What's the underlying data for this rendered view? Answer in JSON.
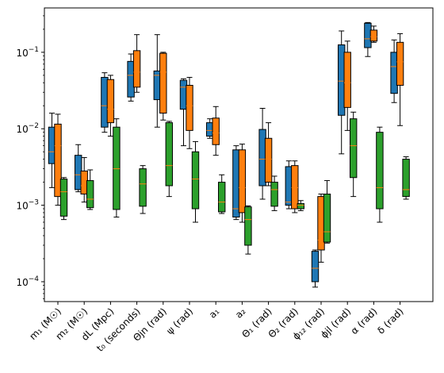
{
  "chart_data": {
    "type": "box",
    "title": "",
    "xlabel": "",
    "ylabel": "",
    "yscale": "log",
    "ylim": [
      5.5e-05,
      0.38
    ],
    "yticks": [
      {
        "value": 0.0001,
        "base": "10",
        "exp": "−4"
      },
      {
        "value": 0.001,
        "base": "10",
        "exp": "−3"
      },
      {
        "value": 0.01,
        "base": "10",
        "exp": "−2"
      },
      {
        "value": 0.1,
        "base": "10",
        "exp": "−1"
      }
    ],
    "grid": false,
    "legend": "none",
    "categories": [
      "m₁ (M☉)",
      "m₂ (M☉)",
      "dL (Mpc)",
      "t₀ (seconds)",
      "Θjn (rad)",
      "ψ (rad)",
      "a₁",
      "a₂",
      "Θ₁ (rad)",
      "Θ₂ (rad)",
      "ϕ₁₂ (rad)",
      "ϕjl (rad)",
      "α (rad)",
      "δ (rad)"
    ],
    "series_colors": [
      "#1f77b4",
      "#ff7f0e",
      "#2ca02c"
    ],
    "median_color": "#ff7f0e",
    "series": [
      {
        "boxes": [
          {
            "whislo": 0.0017,
            "q1": 0.0035,
            "med": 0.005,
            "q3": 0.0105,
            "whishi": 0.016
          },
          {
            "whislo": 0.0015,
            "q1": 0.0016,
            "med": 0.0025,
            "q3": 0.0045,
            "whishi": 0.0062
          },
          {
            "whislo": 0.009,
            "q1": 0.0105,
            "med": 0.02,
            "q3": 0.047,
            "whishi": 0.054
          },
          {
            "whislo": 0.023,
            "q1": 0.026,
            "med": 0.05,
            "q3": 0.076,
            "whishi": 0.095
          },
          {
            "whislo": 0.0105,
            "q1": 0.024,
            "med": 0.05,
            "q3": 0.057,
            "whishi": 0.17
          },
          {
            "whislo": 0.006,
            "q1": 0.018,
            "med": 0.035,
            "q3": 0.043,
            "whishi": 0.045
          },
          {
            "whislo": 0.0075,
            "q1": 0.008,
            "med": 0.0095,
            "q3": 0.012,
            "whishi": 0.0135
          },
          {
            "whislo": 0.00065,
            "q1": 0.0007,
            "med": 0.0009,
            "q3": 0.0053,
            "whishi": 0.006
          },
          {
            "whislo": 0.0012,
            "q1": 0.0018,
            "med": 0.004,
            "q3": 0.0098,
            "whishi": 0.0185
          },
          {
            "whislo": 0.0009,
            "q1": 0.001,
            "med": 0.0011,
            "q3": 0.0032,
            "whishi": 0.0038
          },
          {
            "whislo": 8.5e-05,
            "q1": 0.0001,
            "med": 0.00015,
            "q3": 0.00025,
            "whishi": 0.00026
          },
          {
            "whislo": 0.0047,
            "q1": 0.015,
            "med": 0.042,
            "q3": 0.125,
            "whishi": 0.19
          },
          {
            "whislo": 0.088,
            "q1": 0.115,
            "med": 0.15,
            "q3": 0.24,
            "whishi": 0.245
          },
          {
            "whislo": 0.022,
            "q1": 0.029,
            "med": 0.065,
            "q3": 0.1,
            "whishi": 0.145
          }
        ]
      },
      {
        "boxes": [
          {
            "whislo": 0.001,
            "q1": 0.0013,
            "med": 0.006,
            "q3": 0.0115,
            "whishi": 0.0155
          },
          {
            "whislo": 0.0011,
            "q1": 0.0014,
            "med": 0.0018,
            "q3": 0.0028,
            "whishi": 0.0042
          },
          {
            "whislo": 0.008,
            "q1": 0.012,
            "med": 0.018,
            "q3": 0.044,
            "whishi": 0.05
          },
          {
            "whislo": 0.03,
            "q1": 0.035,
            "med": 0.055,
            "q3": 0.105,
            "whishi": 0.17
          },
          {
            "whislo": 0.013,
            "q1": 0.016,
            "med": 0.055,
            "q3": 0.097,
            "whishi": 0.1
          },
          {
            "whislo": 0.0055,
            "q1": 0.0095,
            "med": 0.02,
            "q3": 0.037,
            "whishi": 0.047
          },
          {
            "whislo": 0.0045,
            "q1": 0.0062,
            "med": 0.0088,
            "q3": 0.0138,
            "whishi": 0.0195
          },
          {
            "whislo": 0.0006,
            "q1": 0.0008,
            "med": 0.0017,
            "q3": 0.0053,
            "whishi": 0.0063
          },
          {
            "whislo": 0.0018,
            "q1": 0.002,
            "med": 0.004,
            "q3": 0.0075,
            "whishi": 0.012
          },
          {
            "whislo": 0.0008,
            "q1": 0.0009,
            "med": 0.0017,
            "q3": 0.0033,
            "whishi": 0.0038
          },
          {
            "whislo": 0.00018,
            "q1": 0.00026,
            "med": 0.00035,
            "q3": 0.0013,
            "whishi": 0.0014
          },
          {
            "whislo": 0.0095,
            "q1": 0.019,
            "med": 0.04,
            "q3": 0.1,
            "whishi": 0.14
          },
          {
            "whislo": 0.135,
            "q1": 0.14,
            "med": 0.16,
            "q3": 0.195,
            "whishi": 0.22
          },
          {
            "whislo": 0.011,
            "q1": 0.037,
            "med": 0.075,
            "q3": 0.135,
            "whishi": 0.175
          }
        ]
      },
      {
        "boxes": [
          {
            "whislo": 0.00065,
            "q1": 0.00072,
            "med": 0.0015,
            "q3": 0.0022,
            "whishi": 0.0023
          },
          {
            "whislo": 0.00088,
            "q1": 0.00093,
            "med": 0.0012,
            "q3": 0.0021,
            "whishi": 0.0029
          },
          {
            "whislo": 0.0007,
            "q1": 0.00088,
            "med": 0.003,
            "q3": 0.0105,
            "whishi": 0.0135
          },
          {
            "whislo": 0.00078,
            "q1": 0.00097,
            "med": 0.0019,
            "q3": 0.003,
            "whishi": 0.0033
          },
          {
            "whislo": 0.0013,
            "q1": 0.0018,
            "med": 0.0033,
            "q3": 0.012,
            "whishi": 0.0125
          },
          {
            "whislo": 0.0006,
            "q1": 0.0009,
            "med": 0.0022,
            "q3": 0.005,
            "whishi": 0.0068
          },
          {
            "whislo": 0.00078,
            "q1": 0.00082,
            "med": 0.0011,
            "q3": 0.002,
            "whishi": 0.0025
          },
          {
            "whislo": 0.00023,
            "q1": 0.0003,
            "med": 0.00065,
            "q3": 0.00095,
            "whishi": 0.00098
          },
          {
            "whislo": 0.00085,
            "q1": 0.00097,
            "med": 0.0016,
            "q3": 0.002,
            "whishi": 0.0024
          },
          {
            "whislo": 0.00085,
            "q1": 0.0009,
            "med": 0.001,
            "q3": 0.00105,
            "whishi": 0.00115
          },
          {
            "whislo": 0.00032,
            "q1": 0.00033,
            "med": 0.00045,
            "q3": 0.0014,
            "whishi": 0.0021
          },
          {
            "whislo": 0.0013,
            "q1": 0.0023,
            "med": 0.006,
            "q3": 0.0135,
            "whishi": 0.0165
          },
          {
            "whislo": 0.0006,
            "q1": 0.0009,
            "med": 0.0017,
            "q3": 0.009,
            "whishi": 0.0105
          },
          {
            "whislo": 0.0012,
            "q1": 0.0013,
            "med": 0.0016,
            "q3": 0.004,
            "whishi": 0.0043
          }
        ]
      }
    ]
  }
}
